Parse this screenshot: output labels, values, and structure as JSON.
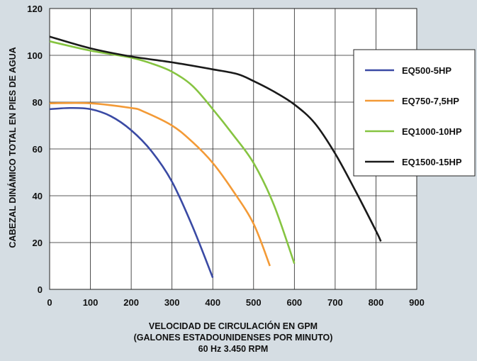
{
  "chart_data": {
    "type": "line",
    "xlabel": "VELOCIDAD DE CIRCULACIÓN EN GPM",
    "xlabel_line2": "(GALONES ESTADOUNIDENSES POR MINUTO)",
    "xlabel_line3": "60 Hz 3.450 RPM",
    "ylabel": "CABEZAL DINÁMICO TOTAL EN PIES DE AGUA",
    "xlim": [
      0,
      900
    ],
    "ylim": [
      0,
      120
    ],
    "x_ticks": [
      0,
      100,
      200,
      300,
      400,
      500,
      600,
      700,
      800,
      900
    ],
    "y_ticks": [
      0,
      20,
      40,
      60,
      80,
      100,
      120
    ],
    "grid": true,
    "legend_position": "right",
    "series": [
      {
        "name": "EQ500-5HP",
        "color": "#3a4aa4",
        "x": [
          0,
          50,
          100,
          150,
          200,
          250,
          300,
          350,
          400
        ],
        "y": [
          77,
          77.5,
          77,
          74,
          68,
          59,
          46,
          27,
          5
        ]
      },
      {
        "name": "EQ750-7,5HP",
        "color": "#f39a36",
        "x": [
          0,
          100,
          200,
          230,
          300,
          350,
          400,
          450,
          500,
          540
        ],
        "y": [
          79.5,
          79.5,
          77.5,
          76,
          70,
          63,
          54,
          42,
          28,
          10
        ]
      },
      {
        "name": "EQ1000-10HP",
        "color": "#86c441",
        "x": [
          0,
          100,
          200,
          250,
          300,
          350,
          400,
          450,
          500,
          550,
          600
        ],
        "y": [
          106,
          102,
          99,
          96.5,
          93,
          87,
          77,
          66,
          54,
          36,
          11
        ]
      },
      {
        "name": "EQ1500-15HP",
        "color": "#1a1a1a",
        "x": [
          0,
          100,
          200,
          300,
          400,
          460,
          500,
          550,
          600,
          650,
          700,
          750,
          800,
          812
        ],
        "y": [
          108,
          103,
          99.5,
          97,
          94,
          92,
          89,
          84.5,
          79,
          71,
          58,
          42,
          25,
          20.5
        ]
      }
    ]
  }
}
